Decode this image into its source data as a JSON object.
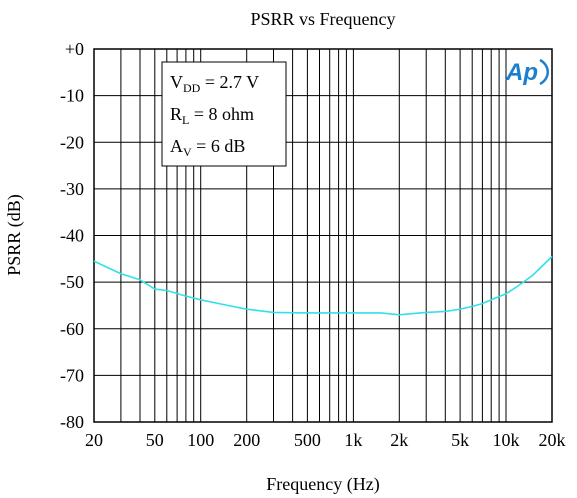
{
  "chart_data": {
    "type": "line",
    "title": "PSRR vs Frequency",
    "xlabel": "Frequency (Hz)",
    "ylabel": "PSRR (dB)",
    "x_scale": "log",
    "xlim": [
      20,
      20000
    ],
    "ylim": [
      -80,
      0
    ],
    "grid": true,
    "x_ticks": [
      20,
      50,
      100,
      200,
      500,
      1000,
      2000,
      5000,
      10000,
      20000
    ],
    "x_tick_labels": [
      "20",
      "50",
      "100",
      "200",
      "500",
      "1k",
      "2k",
      "5k",
      "10k",
      "20k"
    ],
    "y_ticks": [
      0,
      -10,
      -20,
      -30,
      -40,
      -50,
      -60,
      -70,
      -80
    ],
    "y_tick_labels": [
      "+0",
      "-10",
      "-20",
      "-30",
      "-40",
      "-50",
      "-60",
      "-70",
      "-80"
    ],
    "annotation": {
      "lines": [
        {
          "main": "V",
          "sub": "DD",
          "rest": " = 2.7 V"
        },
        {
          "main": "R",
          "sub": "L",
          "rest": " = 8 ohm"
        },
        {
          "main": "A",
          "sub": "V",
          "rest": " = 6 dB"
        }
      ],
      "placement": "top-left"
    },
    "logo": {
      "text": "Ap",
      "color": "#1e7fd0"
    },
    "series": [
      {
        "color": "#33e0e8",
        "x": [
          20,
          25,
          30,
          40,
          50,
          60,
          80,
          100,
          150,
          200,
          300,
          500,
          700,
          1000,
          1500,
          2000,
          2500,
          3000,
          4000,
          5000,
          6000,
          7000,
          8000,
          10000,
          12000,
          15000,
          20000
        ],
        "y": [
          -45.5,
          -47,
          -48.2,
          -49.5,
          -51.5,
          -51.8,
          -53,
          -53.8,
          -55,
          -55.8,
          -56.5,
          -56.6,
          -56.6,
          -56.6,
          -56.6,
          -57,
          -56.7,
          -56.5,
          -56.3,
          -55.8,
          -55.2,
          -54.6,
          -53.8,
          -52.5,
          -50.8,
          -48.5,
          -44.5
        ]
      }
    ]
  }
}
